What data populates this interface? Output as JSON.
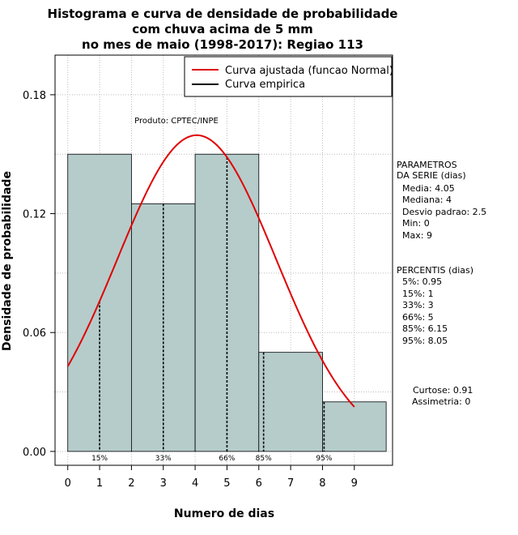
{
  "chart_data": {
    "type": "bar",
    "title": [
      "Histograma e curva de densidade de probabilidade",
      "com chuva acima de 5 mm",
      "no mes de maio (1998-2017): Regiao 113"
    ],
    "xlabel": "Numero de dias",
    "ylabel": "Densidade de probabilidade",
    "xlim": [
      -0.4,
      10.2
    ],
    "ylim": [
      -0.007,
      0.2
    ],
    "x_ticks": [
      0,
      1,
      2,
      3,
      4,
      5,
      6,
      7,
      8,
      9
    ],
    "y_ticks": [
      0.0,
      0.06,
      0.12,
      0.18
    ],
    "y_tick_labels": [
      "0.00",
      "0.06",
      "0.12",
      "0.18"
    ],
    "bins": [
      {
        "start": 0,
        "end": 2,
        "density": 0.15
      },
      {
        "start": 2,
        "end": 4,
        "density": 0.125
      },
      {
        "start": 4,
        "end": 6,
        "density": 0.15
      },
      {
        "start": 6,
        "end": 8,
        "density": 0.05
      },
      {
        "start": 8,
        "end": 10,
        "density": 0.025
      }
    ],
    "normal_curve": {
      "mean": 4.05,
      "sd": 2.5,
      "x_range": [
        0,
        9.0
      ]
    },
    "percentile_lines": [
      {
        "label": "15%",
        "x": 1
      },
      {
        "label": "33%",
        "x": 3
      },
      {
        "label": "66%",
        "x": 5
      },
      {
        "label": "85%",
        "x": 6.15
      },
      {
        "label": "95%",
        "x": 8.05
      }
    ],
    "legend": [
      {
        "label": "Curva ajustada (funcao Normal)",
        "color": "#e00000"
      },
      {
        "label": "Curva empirica",
        "color": "#000000"
      }
    ],
    "legend_position": "top-right",
    "grid": true,
    "annotation": "Produto: CPTEC/INPE",
    "colors": {
      "bar_fill": "#b5cccb",
      "curve": "#e00000",
      "grid": "#bbbbbb"
    }
  },
  "side_panel": {
    "params_title": [
      "PARAMETROS",
      "DA SERIE (dias)"
    ],
    "params": [
      "Media: 4.05",
      "Mediana: 4",
      "Desvio padrao: 2.5",
      "Min: 0",
      "Max: 9"
    ],
    "percentis_title": "PERCENTIS (dias)",
    "percentis": [
      "5%: 0.95",
      "15%: 1",
      "33%: 3",
      "66%: 5",
      "85%: 6.15",
      "95%: 8.05"
    ],
    "curtose": "Curtose: 0.91",
    "assimetria": "Assimetria: 0"
  }
}
